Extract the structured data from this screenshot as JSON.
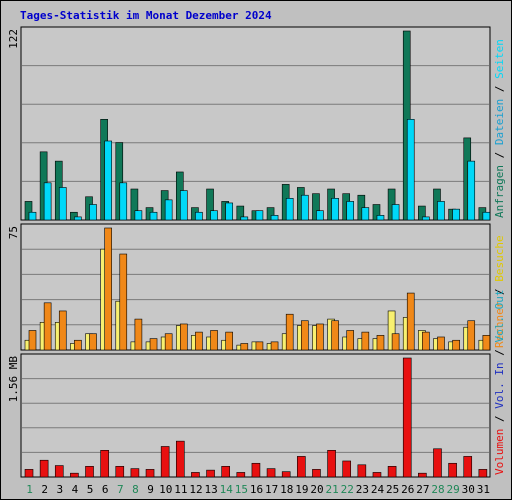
{
  "title": "Tages-Statistik im Monat Dezember 2024",
  "colors": {
    "background": "#c0c0c0",
    "plot_bg": "#c8c8c8",
    "grid": "#7a7a7a",
    "title": "#0000cc",
    "anfragen": "#107858",
    "dateien": "#1a9fd0",
    "seiten": "#00d8f8",
    "besuche": "#f8f070",
    "rechner": "#f08818",
    "vol_in": "#2030c0",
    "vol_out": "#20a8c0",
    "volumen": "#e81010",
    "day_green": "#208858",
    "day_black": "#000000"
  },
  "right_labels": {
    "top": [
      {
        "text": "Anfragen",
        "color": "#107858"
      },
      {
        "text": " / ",
        "color": "#000000"
      },
      {
        "text": "Dateien",
        "color": "#1a9fd0"
      },
      {
        "text": " / ",
        "color": "#000000"
      },
      {
        "text": "Seiten",
        "color": "#00d8f8"
      }
    ],
    "middle": [
      {
        "text": "Rechner",
        "color": "#f08818"
      },
      {
        "text": " / ",
        "color": "#000000"
      },
      {
        "text": "Besuche",
        "color": "#e0c800"
      }
    ],
    "bottom": [
      {
        "text": "Volumen",
        "color": "#e81010"
      },
      {
        "text": " / ",
        "color": "#000000"
      },
      {
        "text": "Vol. In",
        "color": "#2030c0"
      },
      {
        "text": " / ",
        "color": "#000000"
      },
      {
        "text": "Vol. Out",
        "color": "#20a8c0"
      }
    ]
  },
  "chart_data": [
    {
      "type": "bar",
      "name": "requests-files-pages",
      "ymax_label": "122",
      "ylim": [
        0,
        122
      ],
      "categories": [
        "1",
        "2",
        "3",
        "4",
        "5",
        "6",
        "7",
        "8",
        "9",
        "10",
        "11",
        "12",
        "13",
        "14",
        "15",
        "16",
        "17",
        "18",
        "19",
        "20",
        "21",
        "22",
        "23",
        "24",
        "25",
        "26",
        "27",
        "28",
        "29",
        "30",
        "31"
      ],
      "weekend_days": [
        1,
        7,
        8,
        14,
        15,
        21,
        22,
        28,
        29
      ],
      "series": [
        {
          "name": "Anfragen",
          "values": [
            12,
            44,
            38,
            5,
            15,
            65,
            50,
            20,
            8,
            19,
            31,
            8,
            20,
            12,
            9,
            6,
            8,
            23,
            21,
            17,
            20,
            17,
            16,
            10,
            20,
            122,
            9,
            20,
            7,
            53,
            8
          ]
        },
        {
          "name": "Dateien",
          "values": [
            5,
            24,
            21,
            2,
            10,
            51,
            24,
            6,
            5,
            13,
            19,
            5,
            6,
            11,
            2,
            6,
            3,
            14,
            16,
            6,
            14,
            12,
            8,
            3,
            10,
            65,
            2,
            12,
            7,
            38,
            5
          ]
        },
        {
          "name": "Seiten",
          "values": [
            5,
            24,
            21,
            2,
            10,
            51,
            24,
            6,
            5,
            13,
            19,
            5,
            6,
            11,
            2,
            6,
            3,
            14,
            16,
            6,
            14,
            12,
            8,
            3,
            10,
            65,
            2,
            12,
            7,
            38,
            5
          ]
        }
      ]
    },
    {
      "type": "bar",
      "name": "visits-hosts",
      "ymax_label": "75",
      "ylim": [
        0,
        75
      ],
      "categories": [
        "1",
        "2",
        "3",
        "4",
        "5",
        "6",
        "7",
        "8",
        "9",
        "10",
        "11",
        "12",
        "13",
        "14",
        "15",
        "16",
        "17",
        "18",
        "19",
        "20",
        "21",
        "22",
        "23",
        "24",
        "25",
        "26",
        "27",
        "28",
        "29",
        "30",
        "31"
      ],
      "series": [
        {
          "name": "Besuche",
          "values": [
            6,
            17,
            17,
            4,
            10,
            62,
            30,
            5,
            5,
            8,
            15,
            9,
            8,
            6,
            3,
            5,
            4,
            10,
            15,
            15,
            19,
            8,
            7,
            7,
            24,
            20,
            12,
            7,
            5,
            14,
            6
          ]
        },
        {
          "name": "Rechner",
          "values": [
            12,
            29,
            24,
            6,
            10,
            75,
            59,
            19,
            7,
            10,
            16,
            11,
            12,
            11,
            4,
            5,
            5,
            22,
            18,
            16,
            18,
            12,
            11,
            9,
            10,
            35,
            11,
            8,
            6,
            18,
            9
          ]
        }
      ]
    },
    {
      "type": "bar",
      "name": "volume",
      "ymax_label": "1.56 MB",
      "ylim": [
        0,
        1.56
      ],
      "categories": [
        "1",
        "2",
        "3",
        "4",
        "5",
        "6",
        "7",
        "8",
        "9",
        "10",
        "11",
        "12",
        "13",
        "14",
        "15",
        "16",
        "17",
        "18",
        "19",
        "20",
        "21",
        "22",
        "23",
        "24",
        "25",
        "26",
        "27",
        "28",
        "29",
        "30",
        "31"
      ],
      "series": [
        {
          "name": "Volumen",
          "values": [
            0.1,
            0.22,
            0.15,
            0.05,
            0.14,
            0.35,
            0.14,
            0.11,
            0.1,
            0.4,
            0.47,
            0.06,
            0.09,
            0.14,
            0.06,
            0.18,
            0.11,
            0.07,
            0.27,
            0.1,
            0.35,
            0.21,
            0.16,
            0.06,
            0.14,
            1.56,
            0.05,
            0.37,
            0.18,
            0.27,
            0.1
          ]
        }
      ]
    }
  ]
}
